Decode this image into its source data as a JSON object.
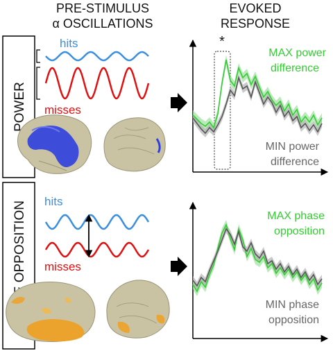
{
  "header": {
    "left_line1": "PRE-STIMULUS",
    "left_line2": "α OSCILLATIONS",
    "right_line1": "EVOKED",
    "right_line2": "RESPONSE"
  },
  "power_panel": {
    "side_label": "POWER",
    "hits_label": "hits",
    "misses_label": "misses",
    "significance_marker": "*",
    "max_label_line1": "MAX power",
    "max_label_line2": "difference",
    "min_label_line1": "MIN power",
    "min_label_line2": "difference",
    "brain_map_color": "#2f3fe0"
  },
  "phase_panel": {
    "side_label": "PHASE OPPOSITION",
    "hits_label": "hits",
    "misses_label": "misses",
    "max_label_line1": "MAX phase",
    "max_label_line2": "opposition",
    "min_label_line1": "MIN phase",
    "min_label_line2": "opposition",
    "brain_map_color": "#f0a020"
  },
  "colors": {
    "hits": "#3a8ee0",
    "misses": "#e01010",
    "max_condition": "#33cc33",
    "min_condition": "#555555",
    "brain": "#c9c3a4"
  }
}
